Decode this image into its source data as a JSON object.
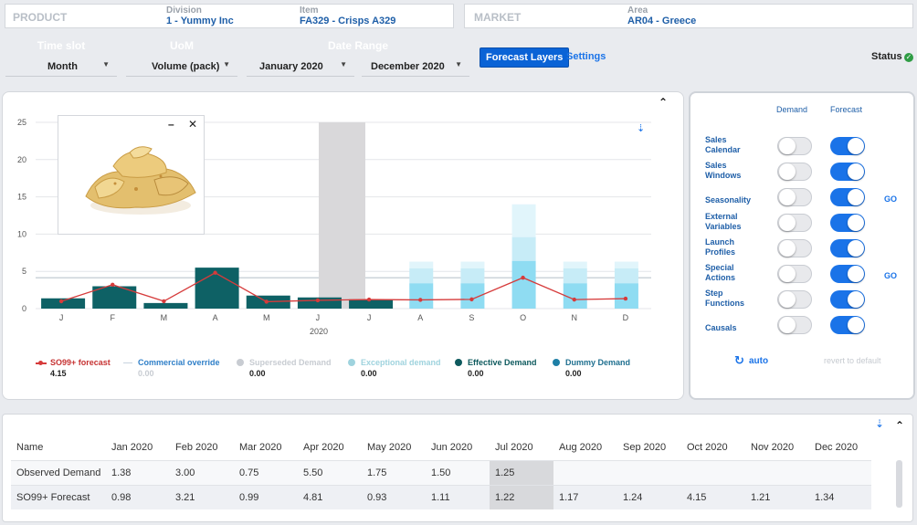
{
  "header": {
    "product": {
      "label": "PRODUCT",
      "division_label": "Division",
      "division_value": "1 - Yummy Inc",
      "item_label": "Item",
      "item_value": "FA329 - Crisps A329"
    },
    "market": {
      "label": "MARKET",
      "area_label": "Area",
      "area_value": "AR04 - Greece"
    }
  },
  "controls": {
    "time_slot": {
      "label": "Time slot",
      "value": "Month"
    },
    "uom": {
      "label": "UoM",
      "value": "Volume (pack)"
    },
    "date_range": {
      "label": "Date Range",
      "from": "January 2020",
      "to": "December 2020"
    },
    "forecast_layers_button": "Forecast Layers",
    "settings_link": "Settings",
    "status_label": "Status"
  },
  "chart_data": {
    "type": "bar",
    "categories": [
      "J",
      "F",
      "M",
      "A",
      "M",
      "J",
      "J",
      "A",
      "S",
      "O",
      "N",
      "D"
    ],
    "year_label": "2020",
    "ylim": [
      0,
      25
    ],
    "yticks": [
      0,
      5,
      10,
      15,
      20,
      25
    ],
    "highlight_index": 6,
    "effective_demand": [
      1.38,
      3.0,
      0.75,
      5.5,
      1.75,
      1.5,
      1.25,
      null,
      null,
      null,
      null,
      null
    ],
    "forecast_band_upper": [
      null,
      null,
      null,
      null,
      null,
      null,
      null,
      6.3,
      6.3,
      14,
      6.3,
      6.3
    ],
    "forecast_band_mid": [
      null,
      null,
      null,
      null,
      null,
      null,
      null,
      5.4,
      5.4,
      9.6,
      5.4,
      5.4
    ],
    "forecast_band_lower": [
      null,
      null,
      null,
      null,
      null,
      null,
      null,
      3.4,
      3.4,
      6.4,
      3.4,
      3.4
    ],
    "so99_forecast": [
      0.98,
      3.21,
      0.99,
      4.81,
      0.93,
      1.11,
      1.22,
      1.17,
      1.24,
      4.15,
      1.21,
      1.34
    ],
    "commercial_override_line": 4.15,
    "legend": [
      {
        "name": "SO99+ forecast",
        "value": "4.15",
        "color": "#d63b3b",
        "marker": "line-dot"
      },
      {
        "name": "Commercial override",
        "value": "0.00",
        "color": "#2f7fc8",
        "marker": "line"
      },
      {
        "name": "Superseded Demand",
        "value": "0.00",
        "color": "#c8ccd2",
        "marker": "dot"
      },
      {
        "name": "Exceptional demand",
        "value": "0.00",
        "color": "#9fd3de",
        "marker": "dot"
      },
      {
        "name": "Effective Demand",
        "value": "0.00",
        "color": "#0e5a5e",
        "marker": "dot"
      },
      {
        "name": "Dummy Demand",
        "value": "0.00",
        "color": "#1e7fa6",
        "marker": "dot"
      }
    ]
  },
  "layers": {
    "col_demand": "Demand",
    "col_forecast": "Forecast",
    "rows": [
      {
        "label": "Sales Calendar",
        "demand": false,
        "forecast": true,
        "go": ""
      },
      {
        "label": "Sales Windows",
        "demand": false,
        "forecast": true,
        "go": ""
      },
      {
        "label": "Seasonality",
        "demand": false,
        "forecast": true,
        "go": "GO"
      },
      {
        "label": "External Variables",
        "demand": false,
        "forecast": true,
        "go": ""
      },
      {
        "label": "Launch Profiles",
        "demand": false,
        "forecast": true,
        "go": ""
      },
      {
        "label": "Special Actions",
        "demand": false,
        "forecast": true,
        "go": "GO"
      },
      {
        "label": "Step Functions",
        "demand": false,
        "forecast": true,
        "go": ""
      },
      {
        "label": "Causals",
        "demand": false,
        "forecast": true,
        "go": ""
      }
    ],
    "auto_label": "auto",
    "revert_label": "revert to default"
  },
  "table": {
    "headers": [
      "Name",
      "Jan 2020",
      "Feb 2020",
      "Mar 2020",
      "Apr 2020",
      "May 2020",
      "Jun 2020",
      "Jul 2020",
      "Aug 2020",
      "Sep 2020",
      "Oct 2020",
      "Nov 2020",
      "Dec 2020"
    ],
    "rows": [
      [
        "Observed Demand",
        "1.38",
        "3.00",
        "0.75",
        "5.50",
        "1.75",
        "1.50",
        "1.25",
        "",
        "",
        "",
        "",
        ""
      ],
      [
        "SO99+ Forecast",
        "0.98",
        "3.21",
        "0.99",
        "4.81",
        "0.93",
        "1.11",
        "1.22",
        "1.17",
        "1.24",
        "4.15",
        "1.21",
        "1.34"
      ]
    ]
  }
}
